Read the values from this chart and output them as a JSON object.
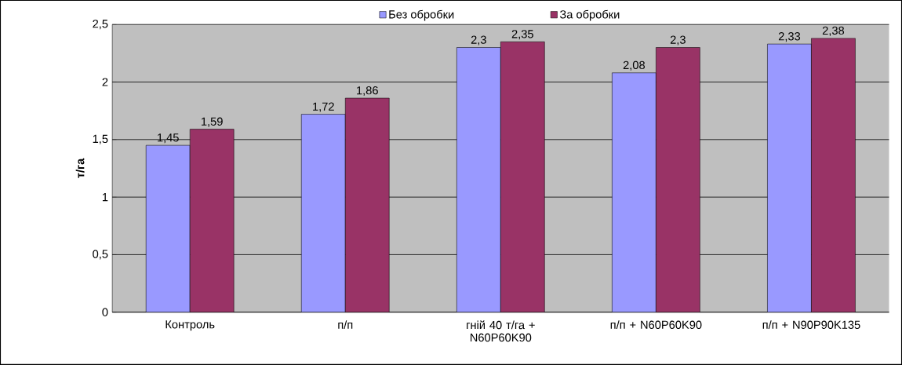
{
  "chart_data": {
    "type": "bar",
    "ylabel": "т/га",
    "categories": [
      "Контроль",
      "п/п",
      "гній 40 т/га + N60P60K90",
      "п/п + N60P60K90",
      "п/п + N90P90K135"
    ],
    "series": [
      {
        "name": "Без обробки",
        "color": "#9999ff",
        "values": [
          1.45,
          1.72,
          2.3,
          2.08,
          2.33
        ],
        "value_labels": [
          "1,45",
          "1,72",
          "2,3",
          "2,08",
          "2,33"
        ]
      },
      {
        "name": "За обробки",
        "color": "#993366",
        "values": [
          1.59,
          1.86,
          2.35,
          2.3,
          2.38
        ],
        "value_labels": [
          "1,59",
          "1,86",
          "2,35",
          "2,3",
          "2,38"
        ]
      }
    ],
    "ylim": [
      0,
      2.5
    ],
    "yticks": [
      0,
      {
        "value": 0.5,
        "label": "0,5"
      },
      1,
      {
        "value": 1.5,
        "label": "1,5"
      },
      2,
      {
        "value": 2.5,
        "label": "2,5"
      }
    ],
    "grid": "y",
    "legend": "top"
  }
}
